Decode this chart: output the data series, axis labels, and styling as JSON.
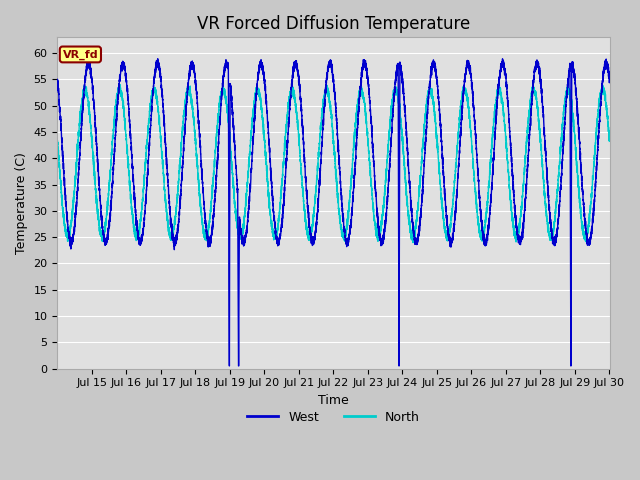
{
  "title": "VR Forced Diffusion Temperature",
  "xlabel": "Time",
  "ylabel": "Temperature (C)",
  "ylim": [
    0,
    63
  ],
  "yticks": [
    0,
    5,
    10,
    15,
    20,
    25,
    30,
    35,
    40,
    45,
    50,
    55,
    60
  ],
  "west_color": "#0000CD",
  "north_color": "#00CCCC",
  "fig_bg_color": "#C8C8C8",
  "plot_bg_color": "#E0E0E0",
  "annotation_label": "VR_fd",
  "annotation_facecolor": "#FFFF88",
  "annotation_edgecolor": "#8B0000",
  "annotation_textcolor": "#8B0000",
  "title_fontsize": 12,
  "axis_label_fontsize": 9,
  "tick_fontsize": 8,
  "legend_fontsize": 9,
  "xlim_start": 14,
  "xlim_end": 30,
  "xtick_start": 15,
  "xtick_end": 30,
  "num_points": 8000
}
